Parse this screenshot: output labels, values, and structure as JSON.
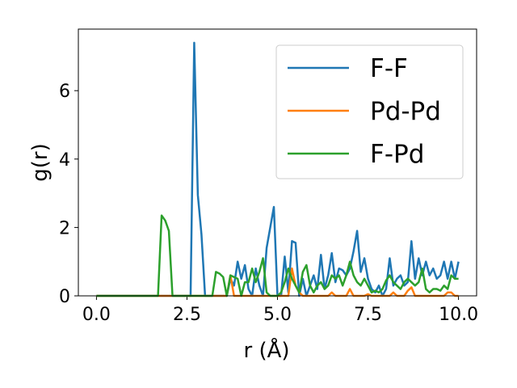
{
  "chart_data": {
    "type": "line",
    "xlabel": "r (Å)",
    "ylabel": "g(r)",
    "x": [
      0,
      0.1,
      0.2,
      0.3,
      0.4,
      0.5,
      0.6,
      0.7,
      0.8,
      0.9,
      1,
      1.1,
      1.2,
      1.3,
      1.4,
      1.5,
      1.6,
      1.7,
      1.8,
      1.9,
      2,
      2.1,
      2.2,
      2.3,
      2.4,
      2.5,
      2.6,
      2.7,
      2.8,
      2.9,
      3,
      3.1,
      3.2,
      3.3,
      3.4,
      3.5,
      3.6,
      3.7,
      3.8,
      3.9,
      4,
      4.1,
      4.2,
      4.3,
      4.4,
      4.5,
      4.6,
      4.7,
      4.8,
      4.9,
      5,
      5.1,
      5.2,
      5.3,
      5.4,
      5.5,
      5.6,
      5.7,
      5.8,
      5.9,
      6,
      6.1,
      6.2,
      6.3,
      6.4,
      6.5,
      6.6,
      6.7,
      6.8,
      6.9,
      7,
      7.1,
      7.2,
      7.3,
      7.4,
      7.5,
      7.6,
      7.7,
      7.8,
      7.9,
      8,
      8.1,
      8.2,
      8.3,
      8.4,
      8.5,
      8.6,
      8.7,
      8.8,
      8.9,
      9,
      9.1,
      9.2,
      9.3,
      9.4,
      9.5,
      9.6,
      9.7,
      9.8,
      9.9,
      10
    ],
    "series": [
      {
        "name": "F-F",
        "color": "#1f77b4",
        "values": [
          0,
          0,
          0,
          0,
          0,
          0,
          0,
          0,
          0,
          0,
          0,
          0,
          0,
          0,
          0,
          0,
          0,
          0,
          0,
          0,
          0,
          0,
          0,
          0,
          0,
          0,
          0,
          7.4,
          2.95,
          1.8,
          0,
          0,
          0,
          0,
          0,
          0,
          0,
          0.5,
          0.3,
          1.0,
          0.5,
          0.9,
          0.2,
          0,
          0.8,
          0.3,
          0,
          1.4,
          2.0,
          2.6,
          0,
          0,
          1.15,
          0.1,
          1.6,
          1.55,
          0,
          0.5,
          0,
          0.3,
          0.6,
          0.2,
          1.2,
          0.2,
          0.6,
          1.25,
          0.4,
          0.8,
          0.75,
          0.6,
          0.8,
          1.3,
          1.9,
          0.7,
          1.1,
          0.5,
          0.2,
          0.1,
          0.3,
          0,
          0.2,
          1.1,
          0.3,
          0.5,
          0.6,
          0.3,
          0.4,
          1.6,
          0.5,
          1.1,
          0.6,
          1.0,
          0.6,
          0.8,
          0.5,
          0.6,
          1.0,
          0.5,
          1.0,
          0.5,
          1.0
        ]
      },
      {
        "name": "Pd-Pd",
        "color": "#ff7f0e",
        "values": [
          0,
          0,
          0,
          0,
          0,
          0,
          0,
          0,
          0,
          0,
          0,
          0,
          0,
          0,
          0,
          0,
          0,
          0,
          0,
          0,
          0,
          0,
          0,
          0,
          0,
          0,
          0,
          0,
          0,
          0,
          0,
          0,
          0,
          0,
          0,
          0,
          0,
          0.6,
          0,
          0,
          0,
          0,
          0,
          0,
          0,
          0,
          0,
          0,
          0,
          0,
          0,
          0,
          0,
          0,
          0.8,
          0.3,
          0.1,
          0,
          0,
          0,
          0,
          0,
          0,
          0,
          0,
          0.1,
          0,
          0,
          0,
          0,
          0.2,
          0,
          0,
          0,
          0,
          0.05,
          0,
          0,
          0,
          0,
          0,
          0,
          0.1,
          0,
          0,
          0,
          0.15,
          0.25,
          0,
          0,
          0,
          0,
          0,
          0,
          0,
          0,
          0,
          0.1,
          0.1,
          0,
          0
        ]
      },
      {
        "name": "F-Pd",
        "color": "#2ca02c",
        "values": [
          0,
          0,
          0,
          0,
          0,
          0,
          0,
          0,
          0,
          0,
          0,
          0,
          0,
          0,
          0,
          0,
          0,
          0,
          2.35,
          2.2,
          1.9,
          0,
          0,
          0,
          0,
          0,
          0,
          0,
          0,
          0,
          0,
          0,
          0,
          0.7,
          0.65,
          0.55,
          0,
          0.6,
          0.55,
          0.5,
          0,
          0.4,
          0.4,
          0.8,
          0.4,
          0.7,
          1.1,
          0.1,
          0,
          0,
          0,
          0.1,
          0.4,
          0.8,
          0.5,
          0.3,
          0.1,
          0.7,
          0.9,
          0.3,
          0.1,
          0.3,
          0.4,
          0.2,
          0.3,
          0.6,
          0.5,
          0.6,
          0.3,
          0.6,
          1.0,
          0.6,
          0.4,
          0.3,
          0.5,
          0.3,
          0.1,
          0.15,
          0.1,
          0.2,
          0.45,
          0.6,
          0.4,
          0.3,
          0.2,
          0.4,
          0.5,
          0.4,
          0.3,
          0.4,
          0.8,
          0.2,
          0.1,
          0.2,
          0.2,
          0.15,
          0.3,
          0.2,
          0.6,
          0.5,
          0.5
        ]
      }
    ],
    "xlim": [
      -0.5,
      10.5
    ],
    "ylim": [
      0,
      7.8
    ],
    "xticks": [
      {
        "value": 0,
        "label": "0.0"
      },
      2.5,
      {
        "value": 5,
        "label": "5.0"
      },
      7.5,
      {
        "value": 10,
        "label": "10.0"
      }
    ],
    "yticks": [
      0,
      2,
      4,
      6
    ],
    "legend": "upper right"
  }
}
